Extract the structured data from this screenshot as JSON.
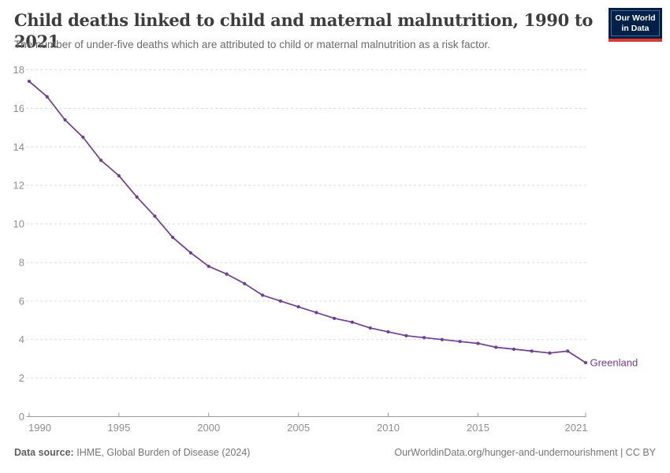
{
  "header": {
    "title": "Child deaths linked to child and maternal malnutrition, 1990 to 2021",
    "subtitle": "The number of under-five deaths which are attributed to child or maternal malnutrition as a risk factor."
  },
  "logo": {
    "line1": "Our World",
    "line2": "in Data",
    "background": "#002147",
    "bar_color": "#d93b34"
  },
  "chart_data": {
    "type": "line",
    "title": "Child deaths linked to child and maternal malnutrition, 1990 to 2021",
    "xlabel": "",
    "ylabel": "",
    "x": [
      1990,
      1991,
      1992,
      1993,
      1994,
      1995,
      1996,
      1997,
      1998,
      1999,
      2000,
      2001,
      2002,
      2003,
      2004,
      2005,
      2006,
      2007,
      2008,
      2009,
      2010,
      2011,
      2012,
      2013,
      2014,
      2015,
      2016,
      2017,
      2018,
      2019,
      2020,
      2021
    ],
    "series": [
      {
        "name": "Greenland",
        "color": "#6D3E91",
        "values": [
          17.4,
          16.6,
          15.4,
          14.5,
          13.3,
          12.5,
          11.4,
          10.4,
          9.3,
          8.5,
          7.8,
          7.4,
          6.9,
          6.3,
          6.0,
          5.7,
          5.4,
          5.1,
          4.9,
          4.6,
          4.4,
          4.2,
          4.1,
          4.0,
          3.9,
          3.8,
          3.6,
          3.5,
          3.4,
          3.3,
          3.4,
          2.8
        ]
      }
    ],
    "end_label": "Greenland",
    "ylim": [
      0,
      18
    ],
    "yticks": [
      0,
      2,
      4,
      6,
      8,
      10,
      12,
      14,
      16,
      18
    ],
    "xticks": [
      1990,
      1995,
      2000,
      2005,
      2010,
      2015,
      2021
    ],
    "grid": true,
    "grid_style": "dashed",
    "legend_position": "end-of-line"
  },
  "footer": {
    "source_label": "Data source:",
    "source_text": "IHME, Global Burden of Disease (2024)",
    "right_text": "OurWorldinData.org/hunger-and-undernourishment | CC BY"
  },
  "colors": {
    "accent": "#6D3E91",
    "grid": "#dadada",
    "axis": "#9a9a9a",
    "tick_text": "#8f8f8f"
  }
}
